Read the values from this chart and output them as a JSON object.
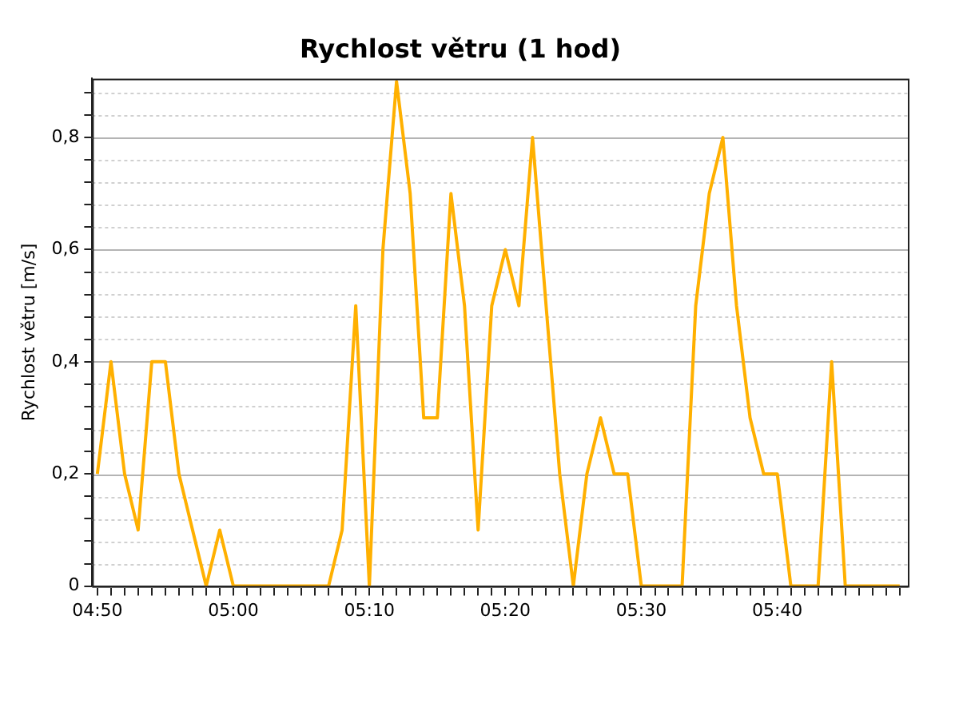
{
  "chart_data": {
    "type": "line",
    "title": "Rychlost větru (1 hod)",
    "ylabel": "Rychlost větru [m/s]",
    "x": [
      4.8333,
      4.85,
      4.8667,
      4.8833,
      4.9,
      4.9167,
      4.9333,
      4.95,
      4.9667,
      4.9833,
      5,
      5.0167,
      5.0333,
      5.05,
      5.0667,
      5.0833,
      5.1,
      5.1167,
      5.1333,
      5.15,
      5.1667,
      5.1833,
      5.2,
      5.2167,
      5.2333,
      5.25,
      5.2667,
      5.2833,
      5.3,
      5.3167,
      5.3333,
      5.35,
      5.3667,
      5.3833,
      5.4,
      5.4167,
      5.4333,
      5.45,
      5.4667,
      5.4833,
      5.5,
      5.5167,
      5.5333,
      5.55,
      5.5667,
      5.5833,
      5.6,
      5.6167,
      5.6333,
      5.65,
      5.6667,
      5.6833,
      5.7,
      5.7167,
      5.7333,
      5.75,
      5.7667,
      5.7833,
      5.8,
      5.8167
    ],
    "series": [
      {
        "color": "#ffb000",
        "values": [
          0.2,
          0.4,
          0.2,
          0.1,
          0.4,
          0.4,
          0.2,
          0.1,
          0,
          0.1,
          0,
          0,
          0,
          0,
          0,
          0,
          0,
          0,
          0.1,
          0.5,
          0,
          0.6,
          0.9,
          0.7,
          0.3,
          0.3,
          0.7,
          0.5,
          0.1,
          0.5,
          0.6,
          0.5,
          0.8,
          0.5,
          0.2,
          0,
          0.2,
          0.3,
          0.2,
          0.2,
          0,
          0,
          0,
          0,
          0.5,
          0.7,
          0.8,
          0.5,
          0.3,
          0.2,
          0.2,
          0,
          0,
          0,
          0.4,
          0,
          0,
          0,
          0,
          0
        ]
      }
    ],
    "xlim": [
      4.827,
      5.8267
    ],
    "xticks": [
      {
        "value": 4.8333,
        "label": "04:50"
      },
      {
        "value": 4.85,
        "label": null
      },
      {
        "value": 4.8667,
        "label": null
      },
      {
        "value": 4.8833,
        "label": null
      },
      {
        "value": 4.9,
        "label": null
      },
      {
        "value": 4.9167,
        "label": null
      },
      {
        "value": 4.9333,
        "label": null
      },
      {
        "value": 4.95,
        "label": null
      },
      {
        "value": 4.9667,
        "label": null
      },
      {
        "value": 4.9833,
        "label": null
      },
      {
        "value": 5,
        "label": "05:00"
      },
      {
        "value": 5.0167,
        "label": null
      },
      {
        "value": 5.0333,
        "label": null
      },
      {
        "value": 5.05,
        "label": null
      },
      {
        "value": 5.0667,
        "label": null
      },
      {
        "value": 5.0833,
        "label": null
      },
      {
        "value": 5.1,
        "label": null
      },
      {
        "value": 5.1167,
        "label": null
      },
      {
        "value": 5.1333,
        "label": null
      },
      {
        "value": 5.15,
        "label": null
      },
      {
        "value": 5.1667,
        "label": "05:10"
      },
      {
        "value": 5.1833,
        "label": null
      },
      {
        "value": 5.2,
        "label": null
      },
      {
        "value": 5.2167,
        "label": null
      },
      {
        "value": 5.2333,
        "label": null
      },
      {
        "value": 5.25,
        "label": null
      },
      {
        "value": 5.2667,
        "label": null
      },
      {
        "value": 5.2833,
        "label": null
      },
      {
        "value": 5.3,
        "label": null
      },
      {
        "value": 5.3167,
        "label": null
      },
      {
        "value": 5.3333,
        "label": "05:20"
      },
      {
        "value": 5.35,
        "label": null
      },
      {
        "value": 5.3667,
        "label": null
      },
      {
        "value": 5.3833,
        "label": null
      },
      {
        "value": 5.4,
        "label": null
      },
      {
        "value": 5.4167,
        "label": null
      },
      {
        "value": 5.4333,
        "label": null
      },
      {
        "value": 5.45,
        "label": null
      },
      {
        "value": 5.4667,
        "label": null
      },
      {
        "value": 5.4833,
        "label": null
      },
      {
        "value": 5.5,
        "label": "05:30"
      },
      {
        "value": 5.5167,
        "label": null
      },
      {
        "value": 5.5333,
        "label": null
      },
      {
        "value": 5.55,
        "label": null
      },
      {
        "value": 5.5667,
        "label": null
      },
      {
        "value": 5.5833,
        "label": null
      },
      {
        "value": 5.6,
        "label": null
      },
      {
        "value": 5.6167,
        "label": null
      },
      {
        "value": 5.6333,
        "label": null
      },
      {
        "value": 5.65,
        "label": null
      },
      {
        "value": 5.6667,
        "label": "05:40"
      },
      {
        "value": 5.6833,
        "label": null
      },
      {
        "value": 5.7,
        "label": null
      },
      {
        "value": 5.7167,
        "label": null
      },
      {
        "value": 5.7333,
        "label": null
      },
      {
        "value": 5.75,
        "label": null
      },
      {
        "value": 5.7667,
        "label": null
      },
      {
        "value": 5.7833,
        "label": null
      },
      {
        "value": 5.8,
        "label": null
      },
      {
        "value": 5.8167,
        "label": null
      }
    ],
    "ylim": [
      0,
      0.905
    ],
    "yticks": [
      {
        "value": 0,
        "label": "0"
      },
      {
        "value": 0.04,
        "label": null
      },
      {
        "value": 0.08,
        "label": null
      },
      {
        "value": 0.12,
        "label": null
      },
      {
        "value": 0.16,
        "label": null
      },
      {
        "value": 0.2,
        "label": "0,2"
      },
      {
        "value": 0.24,
        "label": null
      },
      {
        "value": 0.28,
        "label": null
      },
      {
        "value": 0.32,
        "label": null
      },
      {
        "value": 0.36,
        "label": null
      },
      {
        "value": 0.4,
        "label": "0,4"
      },
      {
        "value": 0.44,
        "label": null
      },
      {
        "value": 0.48,
        "label": null
      },
      {
        "value": 0.52,
        "label": null
      },
      {
        "value": 0.56,
        "label": null
      },
      {
        "value": 0.6,
        "label": "0,6"
      },
      {
        "value": 0.64,
        "label": null
      },
      {
        "value": 0.68,
        "label": null
      },
      {
        "value": 0.72,
        "label": null
      },
      {
        "value": 0.76,
        "label": null
      },
      {
        "value": 0.8,
        "label": "0,8"
      },
      {
        "value": 0.84,
        "label": null
      },
      {
        "value": 0.88,
        "label": null
      }
    ],
    "grid": "y",
    "legend": false,
    "marker": "none",
    "line_style": "solid"
  }
}
